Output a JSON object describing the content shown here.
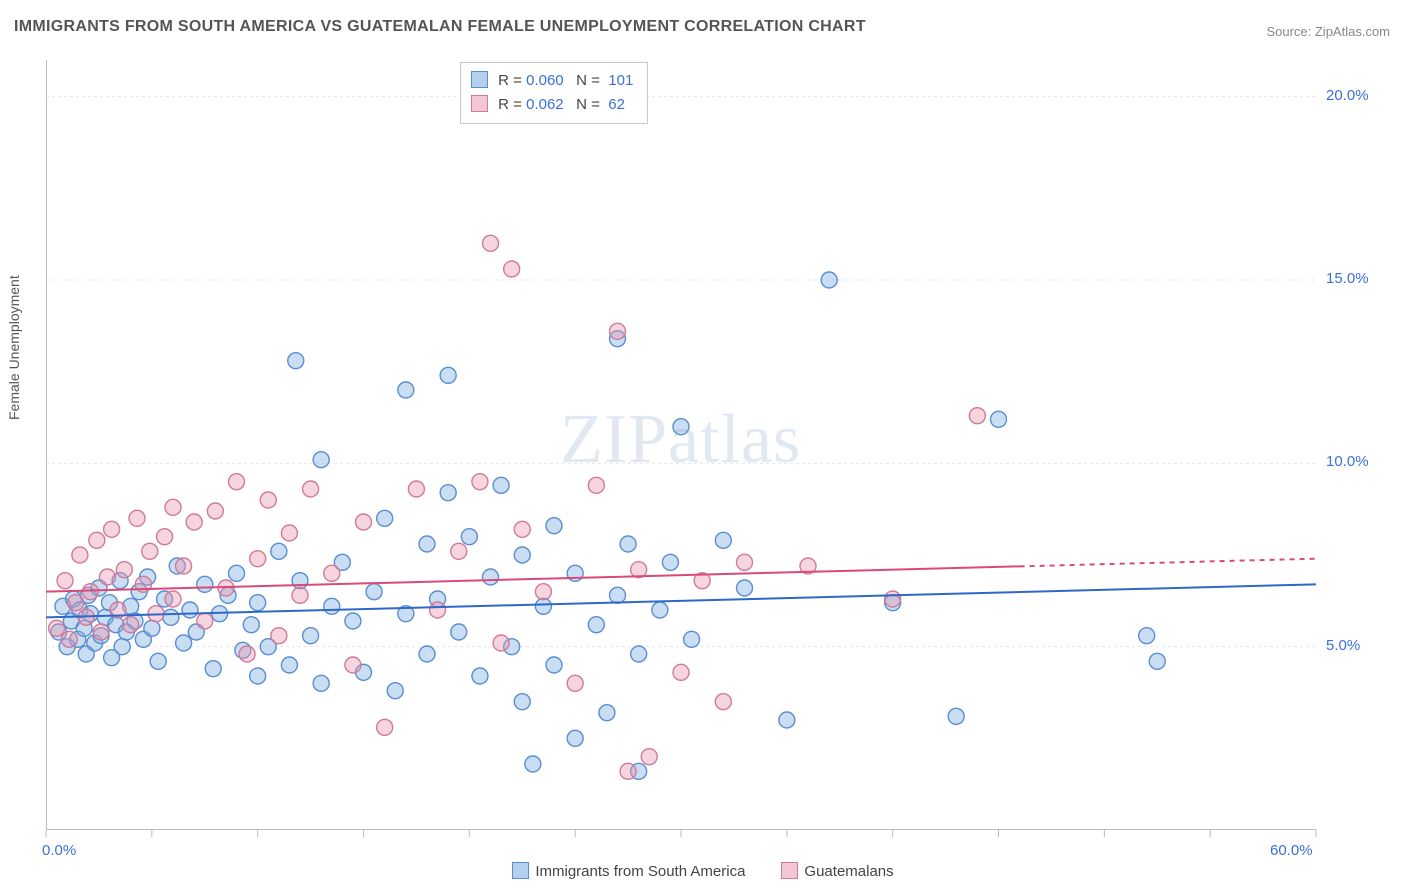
{
  "title": "IMMIGRANTS FROM SOUTH AMERICA VS GUATEMALAN FEMALE UNEMPLOYMENT CORRELATION CHART",
  "source": "Source: ZipAtlas.com",
  "ylabel": "Female Unemployment",
  "watermark": "ZIPatlas",
  "chart": {
    "type": "scatter",
    "xlim": [
      0,
      60
    ],
    "ylim": [
      0,
      21
    ],
    "xtick_positions": [
      0,
      5,
      10,
      15,
      20,
      25,
      30,
      35,
      40,
      45,
      50,
      55,
      60
    ],
    "xtick_labels_shown": {
      "0": "0.0%",
      "60": "60.0%"
    },
    "ytick_positions": [
      5,
      10,
      15,
      20
    ],
    "ytick_labels": [
      "5.0%",
      "10.0%",
      "15.0%",
      "20.0%"
    ],
    "grid_color": "#e6e6e6",
    "grid_dash": "3,3",
    "background": "#ffffff",
    "marker_radius": 8,
    "marker_stroke_width": 1.4,
    "series": [
      {
        "key": "blue",
        "label": "Immigrants from South America",
        "fill": "rgba(120,170,225,0.40)",
        "stroke": "#5a8ed0",
        "R": "0.060",
        "N": "101",
        "trend": {
          "y_at_x0": 5.8,
          "y_at_x60": 6.7,
          "color": "#2f68c9",
          "width": 2,
          "solid_until_x": 60
        },
        "points": [
          [
            0.6,
            5.4
          ],
          [
            0.8,
            6.1
          ],
          [
            1.0,
            5.0
          ],
          [
            1.2,
            5.7
          ],
          [
            1.3,
            6.3
          ],
          [
            1.5,
            5.2
          ],
          [
            1.6,
            6.0
          ],
          [
            1.8,
            5.5
          ],
          [
            1.9,
            4.8
          ],
          [
            2.0,
            6.4
          ],
          [
            2.1,
            5.9
          ],
          [
            2.3,
            5.1
          ],
          [
            2.5,
            6.6
          ],
          [
            2.6,
            5.3
          ],
          [
            2.8,
            5.8
          ],
          [
            3.0,
            6.2
          ],
          [
            3.1,
            4.7
          ],
          [
            3.3,
            5.6
          ],
          [
            3.5,
            6.8
          ],
          [
            3.6,
            5.0
          ],
          [
            3.8,
            5.4
          ],
          [
            4.0,
            6.1
          ],
          [
            4.2,
            5.7
          ],
          [
            4.4,
            6.5
          ],
          [
            4.6,
            5.2
          ],
          [
            4.8,
            6.9
          ],
          [
            5.0,
            5.5
          ],
          [
            5.3,
            4.6
          ],
          [
            5.6,
            6.3
          ],
          [
            5.9,
            5.8
          ],
          [
            6.2,
            7.2
          ],
          [
            6.5,
            5.1
          ],
          [
            6.8,
            6.0
          ],
          [
            7.1,
            5.4
          ],
          [
            7.5,
            6.7
          ],
          [
            7.9,
            4.4
          ],
          [
            8.2,
            5.9
          ],
          [
            8.6,
            6.4
          ],
          [
            9.0,
            7.0
          ],
          [
            9.3,
            4.9
          ],
          [
            9.7,
            5.6
          ],
          [
            10.0,
            6.2
          ],
          [
            10.0,
            4.2
          ],
          [
            10.5,
            5.0
          ],
          [
            11.0,
            7.6
          ],
          [
            11.5,
            4.5
          ],
          [
            11.8,
            12.8
          ],
          [
            12.0,
            6.8
          ],
          [
            12.5,
            5.3
          ],
          [
            13.0,
            4.0
          ],
          [
            13.0,
            10.1
          ],
          [
            13.5,
            6.1
          ],
          [
            14.0,
            7.3
          ],
          [
            14.5,
            5.7
          ],
          [
            15.0,
            4.3
          ],
          [
            15.5,
            6.5
          ],
          [
            16.0,
            8.5
          ],
          [
            16.5,
            3.8
          ],
          [
            17.0,
            5.9
          ],
          [
            17.0,
            12.0
          ],
          [
            18.0,
            7.8
          ],
          [
            18.0,
            4.8
          ],
          [
            18.5,
            6.3
          ],
          [
            19.0,
            12.4
          ],
          [
            19.0,
            9.2
          ],
          [
            19.5,
            5.4
          ],
          [
            20.0,
            8.0
          ],
          [
            20.5,
            4.2
          ],
          [
            21.0,
            6.9
          ],
          [
            21.5,
            9.4
          ],
          [
            22.0,
            5.0
          ],
          [
            22.5,
            3.5
          ],
          [
            22.5,
            7.5
          ],
          [
            23.0,
            1.8
          ],
          [
            23.5,
            6.1
          ],
          [
            24.0,
            8.3
          ],
          [
            24.0,
            4.5
          ],
          [
            25.0,
            7.0
          ],
          [
            25.0,
            2.5
          ],
          [
            26.0,
            5.6
          ],
          [
            26.5,
            3.2
          ],
          [
            27.0,
            6.4
          ],
          [
            27.0,
            13.4
          ],
          [
            27.5,
            7.8
          ],
          [
            28.0,
            4.8
          ],
          [
            28.0,
            1.6
          ],
          [
            29.0,
            6.0
          ],
          [
            29.5,
            7.3
          ],
          [
            30.0,
            11.0
          ],
          [
            30.5,
            5.2
          ],
          [
            32.0,
            7.9
          ],
          [
            33.0,
            6.6
          ],
          [
            35.0,
            3.0
          ],
          [
            37.0,
            15.0
          ],
          [
            40.0,
            6.2
          ],
          [
            43.0,
            3.1
          ],
          [
            45.0,
            11.2
          ],
          [
            52.0,
            5.3
          ],
          [
            52.5,
            4.6
          ]
        ]
      },
      {
        "key": "pink",
        "label": "Guatemalans",
        "fill": "rgba(235,150,175,0.40)",
        "stroke": "#d07a9a",
        "R": "0.062",
        "N": "62",
        "trend": {
          "y_at_x0": 6.5,
          "y_at_x60": 7.4,
          "color": "#d94a78",
          "width": 2,
          "solid_until_x": 46
        },
        "points": [
          [
            0.5,
            5.5
          ],
          [
            0.9,
            6.8
          ],
          [
            1.1,
            5.2
          ],
          [
            1.4,
            6.2
          ],
          [
            1.6,
            7.5
          ],
          [
            1.9,
            5.8
          ],
          [
            2.1,
            6.5
          ],
          [
            2.4,
            7.9
          ],
          [
            2.6,
            5.4
          ],
          [
            2.9,
            6.9
          ],
          [
            3.1,
            8.2
          ],
          [
            3.4,
            6.0
          ],
          [
            3.7,
            7.1
          ],
          [
            4.0,
            5.6
          ],
          [
            4.3,
            8.5
          ],
          [
            4.6,
            6.7
          ],
          [
            4.9,
            7.6
          ],
          [
            5.2,
            5.9
          ],
          [
            5.6,
            8.0
          ],
          [
            6.0,
            6.3
          ],
          [
            6.0,
            8.8
          ],
          [
            6.5,
            7.2
          ],
          [
            7.0,
            8.4
          ],
          [
            7.5,
            5.7
          ],
          [
            8.0,
            8.7
          ],
          [
            8.5,
            6.6
          ],
          [
            9.0,
            9.5
          ],
          [
            9.5,
            4.8
          ],
          [
            10.0,
            7.4
          ],
          [
            10.5,
            9.0
          ],
          [
            11.0,
            5.3
          ],
          [
            11.5,
            8.1
          ],
          [
            12.0,
            6.4
          ],
          [
            12.5,
            9.3
          ],
          [
            13.5,
            7.0
          ],
          [
            14.5,
            4.5
          ],
          [
            15.0,
            8.4
          ],
          [
            16.0,
            2.8
          ],
          [
            17.5,
            9.3
          ],
          [
            18.5,
            6.0
          ],
          [
            19.5,
            7.6
          ],
          [
            20.5,
            9.5
          ],
          [
            21.0,
            16.0
          ],
          [
            21.5,
            5.1
          ],
          [
            22.0,
            15.3
          ],
          [
            22.5,
            8.2
          ],
          [
            23.5,
            6.5
          ],
          [
            25.0,
            4.0
          ],
          [
            26.0,
            9.4
          ],
          [
            27.0,
            13.6
          ],
          [
            27.5,
            1.6
          ],
          [
            28.0,
            7.1
          ],
          [
            28.5,
            2.0
          ],
          [
            30.0,
            4.3
          ],
          [
            31.0,
            6.8
          ],
          [
            32.0,
            3.5
          ],
          [
            33.0,
            7.3
          ],
          [
            36.0,
            7.2
          ],
          [
            40.0,
            6.3
          ],
          [
            44.0,
            11.3
          ]
        ]
      }
    ]
  },
  "stats_box": {
    "rows": [
      {
        "swatch": "blue",
        "R": "0.060",
        "N": "101"
      },
      {
        "swatch": "pink",
        "R": "0.062",
        "N": "62"
      }
    ]
  },
  "bottom_legend": {
    "items": [
      {
        "swatch": "blue",
        "label": "Immigrants from South America"
      },
      {
        "swatch": "pink",
        "label": "Guatemalans"
      }
    ]
  }
}
